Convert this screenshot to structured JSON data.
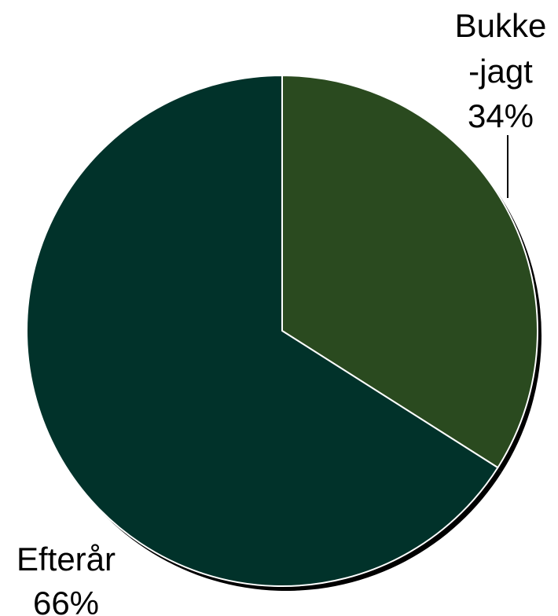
{
  "chart_data": {
    "type": "pie",
    "title": "",
    "categories": [
      "Bukke-jagt",
      "Efterår"
    ],
    "values": [
      34,
      66
    ],
    "unit": "%",
    "colors": [
      "#2a4a1f",
      "#01322a"
    ],
    "legend": "none",
    "labels": [
      {
        "lines": [
          "Bukke",
          "-jagt"
        ],
        "pct": "34%"
      },
      {
        "lines": [
          "Efterår"
        ],
        "pct": "66%"
      }
    ]
  }
}
